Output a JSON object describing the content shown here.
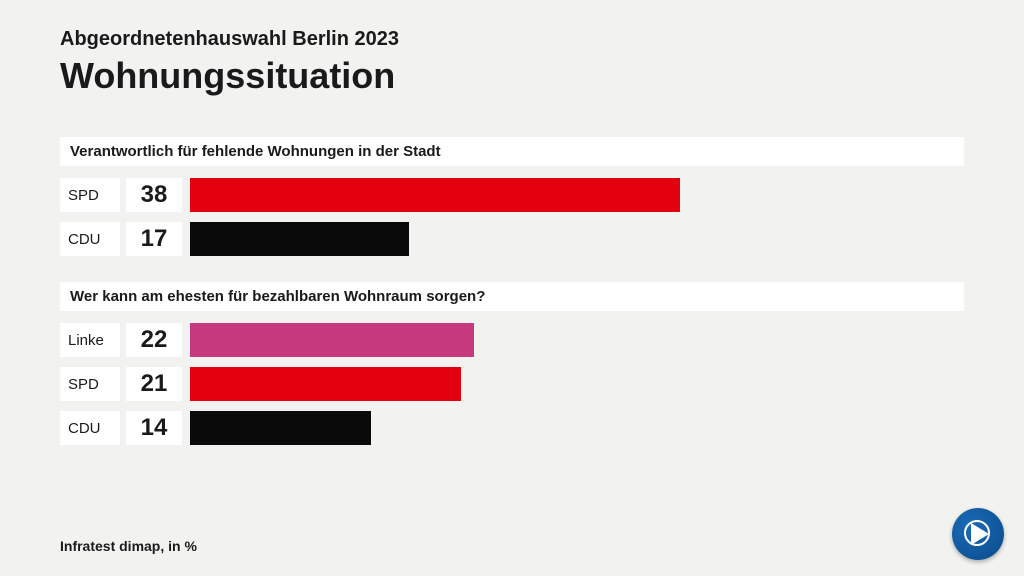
{
  "header": {
    "subtitle": "Abgeordnetenhauswahl Berlin 2023",
    "title": "Wohnungssituation"
  },
  "chart": {
    "type": "bar",
    "max_value": 60,
    "background_color": "#f2f2f0",
    "section_bg": "#ffffff",
    "text_color": "#1a1a1a",
    "sections": [
      {
        "header": "Verantwortlich für fehlende Wohnungen in der Stadt",
        "rows": [
          {
            "party": "SPD",
            "value": 38,
            "color": "#e3000f"
          },
          {
            "party": "CDU",
            "value": 17,
            "color": "#0a0a0a"
          }
        ]
      },
      {
        "header": "Wer kann am ehesten für bezahlbaren Wohnraum sorgen?",
        "rows": [
          {
            "party": "Linke",
            "value": 22,
            "color": "#c6397f"
          },
          {
            "party": "SPD",
            "value": 21,
            "color": "#e3000f"
          },
          {
            "party": "CDU",
            "value": 14,
            "color": "#0a0a0a"
          }
        ]
      }
    ]
  },
  "footer": {
    "source": "Infratest dimap, in %"
  }
}
